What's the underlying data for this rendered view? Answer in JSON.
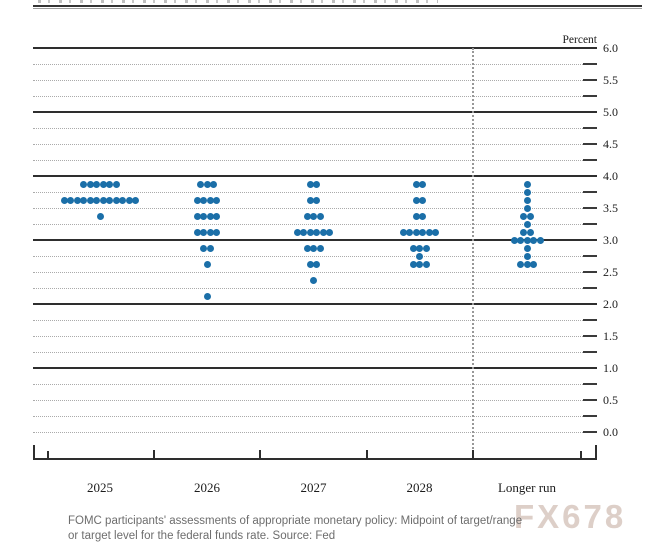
{
  "chart_data": {
    "type": "scatter",
    "subtype": "fomc-dot-plot",
    "title": "",
    "xlabel": "",
    "ylabel": "Percent",
    "ylim": [
      0,
      6
    ],
    "grid_interval": 0.25,
    "label_interval": 0.5,
    "grid_on": true,
    "solid_line_values": [
      1,
      2,
      3,
      4,
      5,
      6
    ],
    "y_tick_labels": [
      "6.0",
      "5.5",
      "5.0",
      "4.5",
      "4.0",
      "3.5",
      "3.0",
      "2.5",
      "2.0",
      "1.5",
      "1.0",
      "0.5",
      "0.0"
    ],
    "categories": [
      "2025",
      "2026",
      "2027",
      "2028",
      "Longer run"
    ],
    "separator_before_category": "Longer run",
    "dot_color": "#1b6fa8",
    "series": [
      {
        "name": "2025",
        "dots": [
          {
            "rate": 3.875,
            "count": 6
          },
          {
            "rate": 3.625,
            "count": 12
          },
          {
            "rate": 3.375,
            "count": 1
          }
        ]
      },
      {
        "name": "2026",
        "dots": [
          {
            "rate": 3.875,
            "count": 3
          },
          {
            "rate": 3.625,
            "count": 4
          },
          {
            "rate": 3.375,
            "count": 4
          },
          {
            "rate": 3.125,
            "count": 4
          },
          {
            "rate": 2.875,
            "count": 2
          },
          {
            "rate": 2.625,
            "count": 1
          },
          {
            "rate": 2.125,
            "count": 1
          }
        ]
      },
      {
        "name": "2027",
        "dots": [
          {
            "rate": 3.875,
            "count": 2
          },
          {
            "rate": 3.625,
            "count": 2
          },
          {
            "rate": 3.375,
            "count": 3
          },
          {
            "rate": 3.125,
            "count": 6
          },
          {
            "rate": 2.875,
            "count": 3
          },
          {
            "rate": 2.625,
            "count": 2
          },
          {
            "rate": 2.375,
            "count": 1
          }
        ]
      },
      {
        "name": "2028",
        "dots": [
          {
            "rate": 3.875,
            "count": 2
          },
          {
            "rate": 3.625,
            "count": 2
          },
          {
            "rate": 3.375,
            "count": 2
          },
          {
            "rate": 3.125,
            "count": 6
          },
          {
            "rate": 2.875,
            "count": 3
          },
          {
            "rate": 2.75,
            "count": 1
          },
          {
            "rate": 2.625,
            "count": 3
          }
        ]
      },
      {
        "name": "Longer run",
        "dots": [
          {
            "rate": 3.875,
            "count": 1
          },
          {
            "rate": 3.75,
            "count": 1
          },
          {
            "rate": 3.625,
            "count": 1
          },
          {
            "rate": 3.5,
            "count": 1
          },
          {
            "rate": 3.375,
            "count": 2
          },
          {
            "rate": 3.25,
            "count": 1
          },
          {
            "rate": 3.125,
            "count": 2
          },
          {
            "rate": 3.0,
            "count": 5
          },
          {
            "rate": 2.875,
            "count": 1
          },
          {
            "rate": 2.75,
            "count": 1
          },
          {
            "rate": 2.625,
            "count": 3
          }
        ]
      }
    ]
  },
  "caption": {
    "line1": "FOMC participants' assessments of appropriate monetary policy: Midpoint of target/range",
    "line2": "or target level for the federal funds rate. Source: Fed"
  },
  "watermark": {
    "text": "FX678"
  },
  "colors": {
    "dot": "#1b6fa8",
    "solid_grid": "#2e2e2e",
    "dashed_grid": "#ababab",
    "caption_text": "#6d6d6d",
    "watermark_text": "#d5c3ba"
  }
}
